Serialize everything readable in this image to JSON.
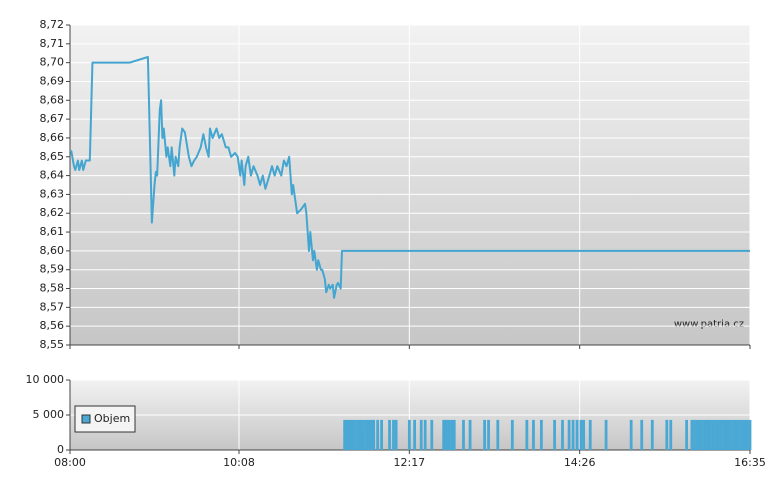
{
  "chart_data": [
    {
      "type": "line",
      "color": "#44a6d0",
      "grid": true,
      "annotation": "www.patria.cz",
      "xlim": [
        "08:00",
        "16:35"
      ],
      "xticks": [
        "08:00",
        "10:08",
        "12:17",
        "14:26",
        "16:35"
      ],
      "ylim": [
        8.55,
        8.72
      ],
      "yticks": [
        {
          "value": 8.55,
          "label": "8,55"
        },
        {
          "value": 8.56,
          "label": "8,56"
        },
        {
          "value": 8.57,
          "label": "8,57"
        },
        {
          "value": 8.58,
          "label": "8,58"
        },
        {
          "value": 8.59,
          "label": "8,59"
        },
        {
          "value": 8.6,
          "label": "8,60"
        },
        {
          "value": 8.61,
          "label": "8,61"
        },
        {
          "value": 8.62,
          "label": "8,62"
        },
        {
          "value": 8.63,
          "label": "8,63"
        },
        {
          "value": 8.64,
          "label": "8,64"
        },
        {
          "value": 8.65,
          "label": "8,65"
        },
        {
          "value": 8.66,
          "label": "8,66"
        },
        {
          "value": 8.67,
          "label": "8,67"
        },
        {
          "value": 8.68,
          "label": "8,68"
        },
        {
          "value": 8.69,
          "label": "8,69"
        },
        {
          "value": 8.7,
          "label": "8,70"
        },
        {
          "value": 8.71,
          "label": "8,71"
        },
        {
          "value": 8.72,
          "label": "8,72"
        }
      ],
      "x": [
        "08:00",
        "08:01",
        "08:03",
        "08:04",
        "08:06",
        "08:07",
        "08:09",
        "08:10",
        "08:12",
        "08:15",
        "08:17",
        "08:45",
        "08:59",
        "09:01",
        "09:02",
        "09:04",
        "09:05",
        "09:06",
        "09:08",
        "09:09",
        "09:10",
        "09:11",
        "09:13",
        "09:14",
        "09:16",
        "09:17",
        "09:19",
        "09:20",
        "09:22",
        "09:23",
        "09:25",
        "09:27",
        "09:30",
        "09:32",
        "09:34",
        "09:36",
        "09:39",
        "09:41",
        "09:43",
        "09:45",
        "09:46",
        "09:48",
        "09:51",
        "09:53",
        "09:55",
        "09:58",
        "10:00",
        "10:02",
        "10:05",
        "10:07",
        "10:09",
        "10:10",
        "10:12",
        "10:13",
        "10:15",
        "10:17",
        "10:19",
        "10:22",
        "10:24",
        "10:26",
        "10:28",
        "10:31",
        "10:33",
        "10:35",
        "10:37",
        "10:40",
        "10:42",
        "10:44",
        "10:46",
        "10:48",
        "10:49",
        "10:52",
        "10:55",
        "10:58",
        "10:59",
        "11:01",
        "11:02",
        "11:04",
        "11:05",
        "11:07",
        "11:08",
        "11:10",
        "11:11",
        "11:13",
        "11:14",
        "11:16",
        "11:17",
        "11:19",
        "11:20",
        "11:22",
        "11:23",
        "11:25",
        "11:26",
        "11:28",
        "16:35"
      ],
      "values": [
        8.653,
        8.653,
        8.645,
        8.643,
        8.648,
        8.643,
        8.648,
        8.643,
        8.648,
        8.648,
        8.7,
        8.7,
        8.703,
        8.645,
        8.615,
        8.635,
        8.642,
        8.64,
        8.675,
        8.68,
        8.66,
        8.665,
        8.65,
        8.655,
        8.645,
        8.655,
        8.64,
        8.65,
        8.645,
        8.655,
        8.665,
        8.663,
        8.65,
        8.645,
        8.648,
        8.65,
        8.655,
        8.662,
        8.655,
        8.65,
        8.665,
        8.66,
        8.665,
        8.66,
        8.662,
        8.655,
        8.655,
        8.65,
        8.652,
        8.65,
        8.64,
        8.648,
        8.635,
        8.645,
        8.65,
        8.64,
        8.645,
        8.64,
        8.635,
        8.64,
        8.633,
        8.64,
        8.645,
        8.64,
        8.645,
        8.64,
        8.648,
        8.645,
        8.65,
        8.63,
        8.635,
        8.62,
        8.622,
        8.625,
        8.62,
        8.6,
        8.61,
        8.595,
        8.6,
        8.59,
        8.595,
        8.59,
        8.59,
        8.585,
        8.578,
        8.582,
        8.58,
        8.582,
        8.575,
        8.582,
        8.583,
        8.58,
        8.6,
        8.6,
        8.6
      ]
    },
    {
      "type": "bar",
      "grid": true,
      "legend": "left",
      "xlim": [
        "08:00",
        "16:35"
      ],
      "xticks": [
        "08:00",
        "10:08",
        "12:17",
        "14:26",
        "16:35"
      ],
      "ylim": [
        0,
        10000
      ],
      "yticks": [
        0,
        {
          "value": 5000,
          "label": "5 000"
        },
        {
          "value": 10000,
          "label": "10 000"
        }
      ],
      "x": [
        "11:28",
        "11:30",
        "11:31",
        "11:33",
        "11:35",
        "11:37",
        "11:39",
        "11:41",
        "11:43",
        "11:45",
        "11:47",
        "11:49",
        "11:50",
        "11:53",
        "11:56",
        "12:02",
        "12:05",
        "12:07",
        "12:17",
        "12:21",
        "12:26",
        "12:29",
        "12:34",
        "12:43",
        "12:45",
        "12:47",
        "12:49",
        "12:51",
        "12:58",
        "13:03",
        "13:14",
        "13:17",
        "13:24",
        "13:35",
        "13:46",
        "13:51",
        "13:57",
        "14:07",
        "14:13",
        "14:18",
        "14:21",
        "14:24",
        "14:27",
        "14:29",
        "14:34",
        "14:46",
        "15:05",
        "15:13",
        "15:21",
        "15:32",
        "15:35",
        "15:47",
        "15:51",
        "15:53",
        "15:55",
        "15:57",
        "15:59",
        "16:01",
        "16:03",
        "16:05",
        "16:07",
        "16:09",
        "16:11",
        "16:13",
        "16:15",
        "16:17",
        "16:19",
        "16:21",
        "16:23",
        "16:25",
        "16:27",
        "16:29",
        "16:31",
        "16:33",
        "16:35"
      ],
      "series": [
        {
          "name": "Objem",
          "color": "#4aa8d4",
          "values": [
            4300,
            4300,
            4300,
            4300,
            4300,
            4300,
            4300,
            4300,
            4300,
            4300,
            4300,
            4300,
            4300,
            4300,
            4300,
            4300,
            4300,
            4300,
            4300,
            4300,
            4300,
            4300,
            4300,
            4300,
            4300,
            4300,
            4300,
            4300,
            4300,
            4300,
            4300,
            4300,
            4300,
            4300,
            4300,
            4300,
            4300,
            4300,
            4300,
            4300,
            4300,
            4300,
            4300,
            4300,
            4300,
            4300,
            4300,
            4300,
            4300,
            4300,
            4300,
            4300,
            4300,
            4300,
            4300,
            4300,
            4300,
            4300,
            4300,
            4300,
            4300,
            4300,
            4300,
            4300,
            4300,
            4300,
            4300,
            4300,
            4300,
            4300,
            4300,
            4300,
            4300,
            4300,
            4300
          ]
        }
      ]
    }
  ]
}
